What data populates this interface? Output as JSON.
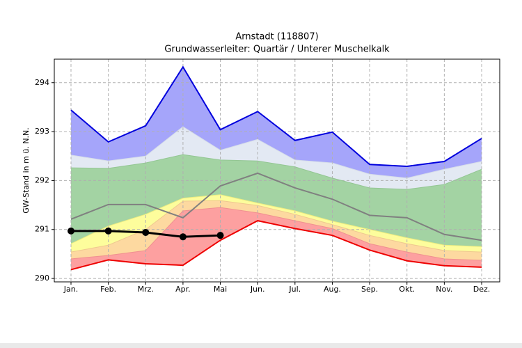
{
  "chart_data": {
    "type": "band",
    "title": "Arnstadt (118807)",
    "subtitle": "Grundwasserleiter: Quartär / Unterer Muschelkalk",
    "y_label": "GW-Stand in m ü. N.N.",
    "categories": [
      "Jan.",
      "Feb.",
      "Mrz.",
      "Apr.",
      "Mai",
      "Jun.",
      "Jul.",
      "Aug.",
      "Sep.",
      "Okt.",
      "Nov.",
      "Dez."
    ],
    "ylim": [
      289.93,
      294.48
    ],
    "yticks": [
      290,
      291,
      292,
      293,
      294
    ],
    "grid": true,
    "bands": [
      {
        "color": "#0000dd",
        "fill": "#a5a5fa",
        "values": [
          293.44,
          292.79,
          293.12,
          294.32,
          293.04,
          293.41,
          292.82,
          292.99,
          292.33,
          292.29,
          292.39,
          292.86
        ]
      },
      {
        "color": "#d6dde9",
        "fill": "#e3e9f3",
        "values": [
          292.52,
          292.4,
          292.5,
          293.1,
          292.62,
          292.84,
          292.42,
          292.36,
          292.13,
          292.05,
          292.23,
          292.39
        ]
      },
      {
        "color": "#93c693",
        "fill": "#a3d3a3",
        "values": [
          292.26,
          292.25,
          292.36,
          292.53,
          292.42,
          292.4,
          292.28,
          292.05,
          291.85,
          291.82,
          291.92,
          292.23
        ]
      },
      {
        "color": "#eded80",
        "fill": "#fdfd9c",
        "values": [
          290.71,
          291.07,
          291.31,
          291.64,
          291.71,
          291.54,
          291.38,
          291.17,
          291.0,
          290.83,
          290.68,
          290.65
        ]
      },
      {
        "color": "#efc890",
        "fill": "#fdd9a0",
        "values": [
          290.54,
          290.68,
          291.0,
          291.58,
          291.59,
          291.49,
          291.31,
          291.1,
          290.88,
          290.71,
          290.57,
          290.54
        ]
      },
      {
        "color": "#f09090",
        "fill": "#fda0a0",
        "values": [
          290.4,
          290.47,
          290.57,
          291.38,
          291.45,
          291.34,
          291.18,
          291.02,
          290.71,
          290.54,
          290.4,
          290.37
        ]
      },
      {
        "color": "#ee0000",
        "fill": null,
        "values": [
          290.18,
          290.38,
          290.3,
          290.27,
          290.78,
          291.18,
          291.02,
          290.88,
          290.58,
          290.36,
          290.26,
          290.23
        ]
      }
    ],
    "series": [
      {
        "color": "#808080",
        "markers": false,
        "values": [
          291.21,
          291.51,
          291.51,
          291.24,
          291.89,
          292.15,
          291.85,
          291.62,
          291.29,
          291.24,
          290.9,
          290.78
        ]
      },
      {
        "color": "#000000",
        "markers": true,
        "values": [
          290.97,
          290.97,
          290.94,
          290.85,
          290.88,
          null,
          null,
          null,
          null,
          null,
          null,
          null
        ]
      }
    ]
  }
}
